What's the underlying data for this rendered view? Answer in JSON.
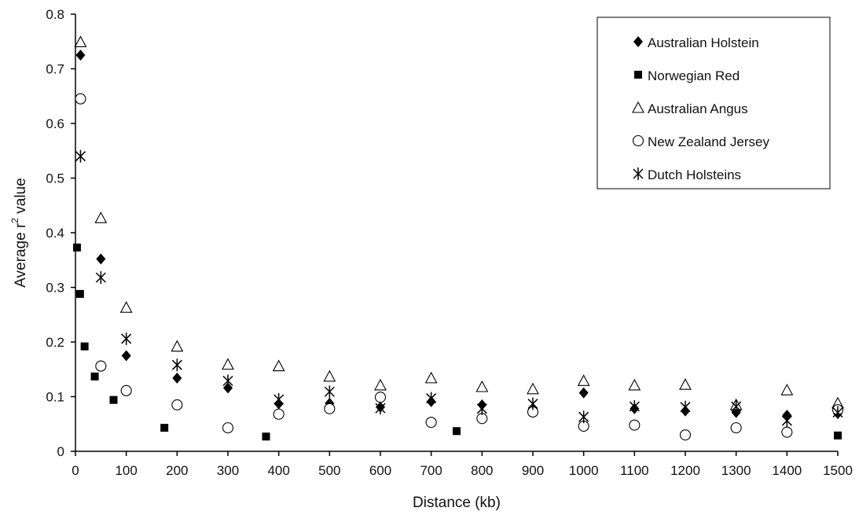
{
  "chart_data": {
    "type": "scatter",
    "title": "",
    "xlabel": "Distance (kb)",
    "ylabel_main": "Average r",
    "ylabel_sup": "2",
    "ylabel_suffix": " value",
    "xlim": [
      0,
      1500
    ],
    "ylim": [
      0,
      0.8
    ],
    "xticks": [
      0,
      100,
      200,
      300,
      400,
      500,
      600,
      700,
      800,
      900,
      1000,
      1100,
      1200,
      1300,
      1400,
      1500
    ],
    "yticks": [
      "0",
      "0.1",
      "0.2",
      "0.3",
      "0.4",
      "0.5",
      "0.6",
      "0.7",
      "0.8"
    ],
    "ytick_values": [
      0,
      0.1,
      0.2,
      0.3,
      0.4,
      0.5,
      0.6,
      0.7,
      0.8
    ],
    "grid": false,
    "legend_position": "top-right",
    "series": [
      {
        "name": "Australian Holstein",
        "marker": "diamond",
        "points": [
          [
            10,
            0.725
          ],
          [
            50,
            0.352
          ],
          [
            100,
            0.175
          ],
          [
            200,
            0.134
          ],
          [
            300,
            0.116
          ],
          [
            400,
            0.087
          ],
          [
            500,
            0.088
          ],
          [
            600,
            0.081
          ],
          [
            700,
            0.091
          ],
          [
            800,
            0.085
          ],
          [
            900,
            0.077
          ],
          [
            1000,
            0.107
          ],
          [
            1100,
            0.078
          ],
          [
            1200,
            0.074
          ],
          [
            1300,
            0.071
          ],
          [
            1400,
            0.066
          ],
          [
            1500,
            0.069
          ]
        ]
      },
      {
        "name": "Norwegian Red",
        "marker": "square",
        "points": [
          [
            3,
            0.373
          ],
          [
            9,
            0.288
          ],
          [
            18,
            0.192
          ],
          [
            38,
            0.137
          ],
          [
            75,
            0.094
          ],
          [
            175,
            0.043
          ],
          [
            375,
            0.027
          ],
          [
            750,
            0.037
          ],
          [
            1500,
            0.029
          ]
        ]
      },
      {
        "name": "Australian Angus",
        "marker": "triangle",
        "points": [
          [
            10,
            0.749
          ],
          [
            50,
            0.427
          ],
          [
            100,
            0.263
          ],
          [
            200,
            0.192
          ],
          [
            300,
            0.159
          ],
          [
            400,
            0.156
          ],
          [
            500,
            0.137
          ],
          [
            600,
            0.121
          ],
          [
            700,
            0.134
          ],
          [
            800,
            0.118
          ],
          [
            900,
            0.114
          ],
          [
            1000,
            0.129
          ],
          [
            1100,
            0.121
          ],
          [
            1200,
            0.122
          ],
          [
            1300,
            0.085
          ],
          [
            1400,
            0.112
          ],
          [
            1500,
            0.088
          ]
        ]
      },
      {
        "name": "New Zealand Jersey",
        "marker": "circle",
        "points": [
          [
            10,
            0.645
          ],
          [
            50,
            0.156
          ],
          [
            100,
            0.111
          ],
          [
            200,
            0.085
          ],
          [
            300,
            0.043
          ],
          [
            400,
            0.068
          ],
          [
            500,
            0.078
          ],
          [
            600,
            0.099
          ],
          [
            700,
            0.053
          ],
          [
            800,
            0.06
          ],
          [
            900,
            0.072
          ],
          [
            1000,
            0.046
          ],
          [
            1100,
            0.048
          ],
          [
            1200,
            0.03
          ],
          [
            1300,
            0.043
          ],
          [
            1400,
            0.035
          ],
          [
            1500,
            0.076
          ]
        ]
      },
      {
        "name": "Dutch Holsteins",
        "marker": "asterisk",
        "points": [
          [
            10,
            0.54
          ],
          [
            50,
            0.318
          ],
          [
            100,
            0.206
          ],
          [
            200,
            0.158
          ],
          [
            300,
            0.129
          ],
          [
            400,
            0.095
          ],
          [
            500,
            0.109
          ],
          [
            600,
            0.079
          ],
          [
            700,
            0.097
          ],
          [
            800,
            0.078
          ],
          [
            900,
            0.087
          ],
          [
            1000,
            0.063
          ],
          [
            1100,
            0.082
          ],
          [
            1200,
            0.081
          ],
          [
            1300,
            0.082
          ],
          [
            1400,
            0.056
          ],
          [
            1500,
            0.071
          ]
        ]
      }
    ]
  }
}
